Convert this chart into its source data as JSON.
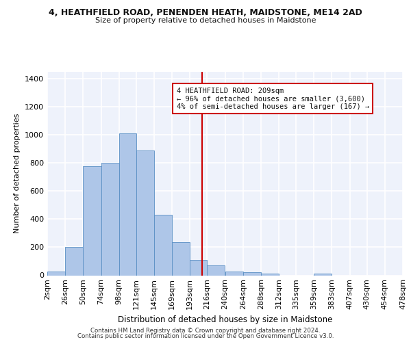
{
  "title": "4, HEATHFIELD ROAD, PENENDEN HEATH, MAIDSTONE, ME14 2AD",
  "subtitle": "Size of property relative to detached houses in Maidstone",
  "xlabel": "Distribution of detached houses by size in Maidstone",
  "ylabel": "Number of detached properties",
  "footnote1": "Contains HM Land Registry data © Crown copyright and database right 2024.",
  "footnote2": "Contains public sector information licensed under the Open Government Licence v3.0.",
  "annotation_title": "4 HEATHFIELD ROAD: 209sqm",
  "annotation_line1": "← 96% of detached houses are smaller (3,600)",
  "annotation_line2": "4% of semi-detached houses are larger (167) →",
  "property_size": 209,
  "bar_color": "#aec6e8",
  "bar_edge_color": "#5a8fc4",
  "vline_color": "#cc0000",
  "annotation_box_color": "#cc0000",
  "background_color": "#eef2fb",
  "grid_color": "#ffffff",
  "bin_edges": [
    2,
    26,
    50,
    74,
    98,
    121,
    145,
    169,
    193,
    216,
    240,
    264,
    288,
    312,
    335,
    359,
    383,
    407,
    430,
    454,
    478
  ],
  "bin_labels": [
    "2sqm",
    "26sqm",
    "50sqm",
    "74sqm",
    "98sqm",
    "121sqm",
    "145sqm",
    "169sqm",
    "193sqm",
    "216sqm",
    "240sqm",
    "264sqm",
    "288sqm",
    "312sqm",
    "335sqm",
    "359sqm",
    "383sqm",
    "407sqm",
    "430sqm",
    "454sqm",
    "478sqm"
  ],
  "counts": [
    25,
    200,
    775,
    800,
    1010,
    890,
    430,
    235,
    110,
    70,
    28,
    22,
    12,
    0,
    0,
    10,
    0,
    0,
    0,
    0
  ],
  "ylim": [
    0,
    1450
  ],
  "yticks": [
    0,
    200,
    400,
    600,
    800,
    1000,
    1200,
    1400
  ]
}
